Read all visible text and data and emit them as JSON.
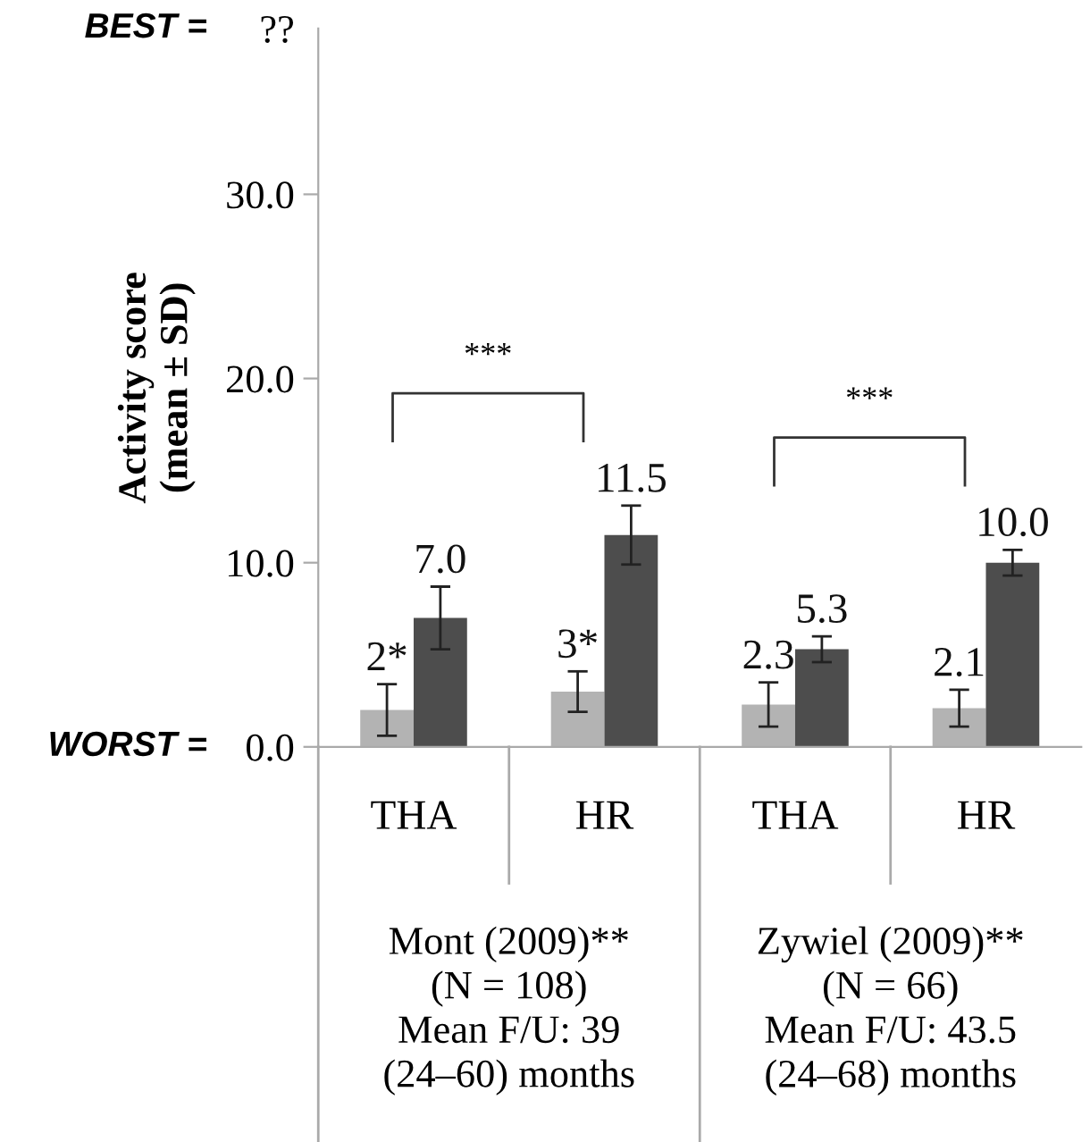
{
  "chart_data": {
    "type": "bar",
    "ylabel": "Activity score\n(mean ± SD)",
    "categories": [
      "THA",
      "HR",
      "THA",
      "HR"
    ],
    "series": [
      {
        "color": "#b3b3b3",
        "values": [
          2,
          3,
          2.3,
          2.1
        ],
        "errors": [
          1.4,
          1.1,
          1.2,
          1.0
        ],
        "value_labels": [
          "2*",
          "3*",
          "2.3",
          "2.1"
        ]
      },
      {
        "color": "#4d4d4d",
        "values": [
          7.0,
          11.5,
          5.3,
          10.0
        ],
        "errors": [
          1.7,
          1.6,
          0.7,
          0.7
        ],
        "value_labels": [
          "7.0",
          "11.5",
          "5.3",
          "10.0"
        ]
      }
    ],
    "ylim": [
      0,
      39
    ],
    "yticks": [
      {
        "value": 0,
        "label": "0.0"
      },
      {
        "value": 10,
        "label": "10.0"
      },
      {
        "value": 20,
        "label": "20.0"
      },
      {
        "value": 30,
        "label": "30.0"
      },
      {
        "value": 39,
        "label": "??"
      }
    ],
    "annotations": [
      "BEST =",
      "WORST =",
      "***",
      "***",
      "Mont (2009)**\n(N = 108)\nMean F/U: 39\n(24–60) months",
      "Zywiel (2009)**\n(N = 66)\nMean F/U: 43.5\n(24–68) months"
    ],
    "grid": false,
    "legend": false
  }
}
